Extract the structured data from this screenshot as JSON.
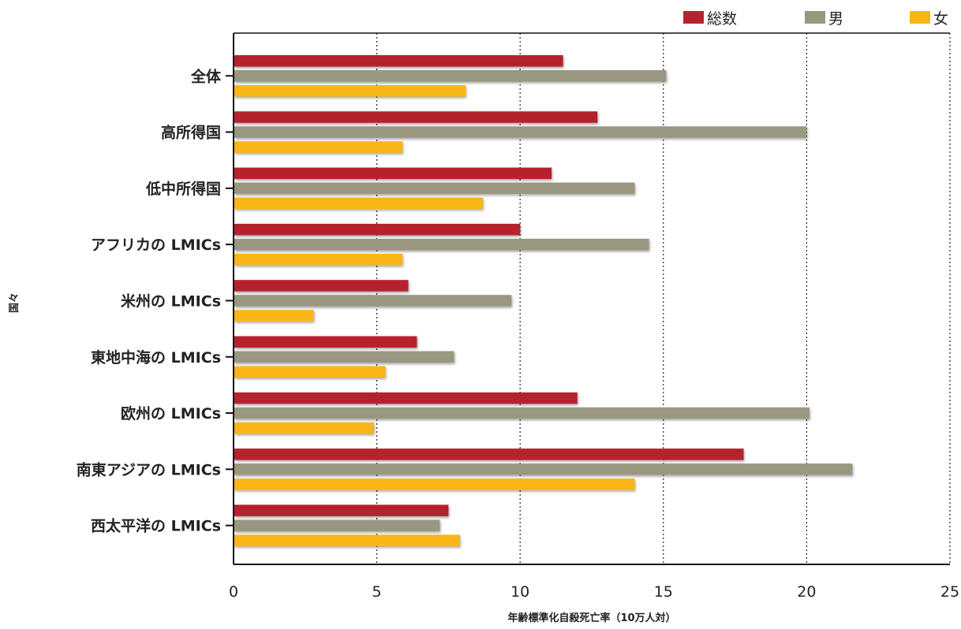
{
  "chart_data": {
    "type": "bar",
    "orientation": "horizontal",
    "categories": [
      "全体",
      "高所得国",
      "低中所得国",
      "アフリカの LMICs",
      "米州の LMICs",
      "東地中海の LMICs",
      "欧州の LMICs",
      "南東アジアの LMICs",
      "西太平洋の LMICs"
    ],
    "series": [
      {
        "name": "総数",
        "color": "#b5232f",
        "values": [
          11.5,
          12.7,
          11.1,
          10.0,
          6.1,
          6.4,
          12.0,
          17.8,
          7.5
        ]
      },
      {
        "name": "男",
        "color": "#9a9781",
        "values": [
          15.1,
          20.0,
          14.0,
          14.5,
          9.7,
          7.7,
          20.1,
          21.6,
          7.2
        ]
      },
      {
        "name": "女",
        "color": "#fab514",
        "values": [
          8.1,
          5.9,
          8.7,
          5.9,
          2.8,
          5.3,
          4.9,
          14.0,
          7.9
        ]
      }
    ],
    "xlabel": "年齢標準化自殺死亡率（10万人対）",
    "ylabel": "国々",
    "xlim": [
      0,
      25
    ],
    "xticks": [
      0,
      5,
      10,
      15,
      20,
      25
    ],
    "grid": "vertical-dotted",
    "legend_position": "top-right"
  }
}
